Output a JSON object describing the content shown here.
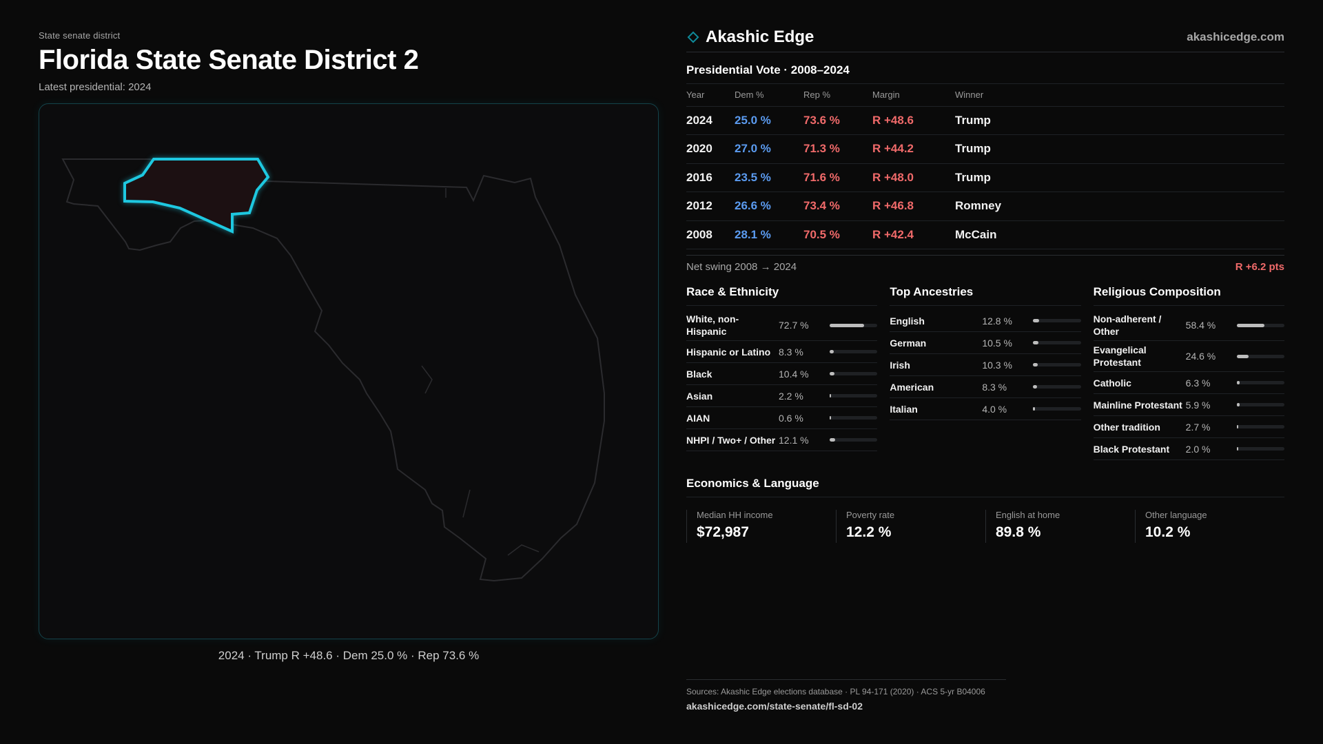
{
  "header": {
    "eyebrow": "State senate district",
    "title": "Florida State Senate District 2",
    "subtitle": "Latest presidential: 2024"
  },
  "map": {
    "caption": "2024 · Trump R +48.6 · Dem 25.0 % · Rep 73.6 %",
    "highlight_color": "#1ec8e0",
    "outline_color": "#2b2b2e"
  },
  "brand": {
    "name": "Akashic Edge",
    "url": "akashicedge.com",
    "icon": "diamond-icon"
  },
  "presidential": {
    "title": "Presidential Vote · 2008–2024",
    "columns": [
      "Year",
      "Dem %",
      "Rep %",
      "Margin",
      "Winner"
    ],
    "rows": [
      {
        "year": "2024",
        "dem": "25.0 %",
        "rep": "73.6 %",
        "margin": "R +48.6",
        "winner": "Trump"
      },
      {
        "year": "2020",
        "dem": "27.0 %",
        "rep": "71.3 %",
        "margin": "R +44.2",
        "winner": "Trump"
      },
      {
        "year": "2016",
        "dem": "23.5 %",
        "rep": "71.6 %",
        "margin": "R +48.0",
        "winner": "Trump"
      },
      {
        "year": "2012",
        "dem": "26.6 %",
        "rep": "73.4 %",
        "margin": "R +46.8",
        "winner": "Romney"
      },
      {
        "year": "2008",
        "dem": "28.1 %",
        "rep": "70.5 %",
        "margin": "R +42.4",
        "winner": "McCain"
      }
    ],
    "swing_label": "Net swing 2008 → 2024",
    "swing_value": "R +6.2 pts"
  },
  "colors": {
    "dem": "#5b9bf0",
    "rep": "#f06a6a"
  },
  "race": {
    "title": "Race & Ethnicity",
    "items": [
      {
        "label": "White, non-Hispanic",
        "value": "72.7 %",
        "pct": 72.7
      },
      {
        "label": "Hispanic or Latino",
        "value": "8.3 %",
        "pct": 8.3
      },
      {
        "label": "Black",
        "value": "10.4 %",
        "pct": 10.4
      },
      {
        "label": "Asian",
        "value": "2.2 %",
        "pct": 2.2
      },
      {
        "label": "AIAN",
        "value": "0.6 %",
        "pct": 0.6
      },
      {
        "label": "NHPI / Two+ / Other",
        "value": "12.1 %",
        "pct": 12.1
      }
    ]
  },
  "ancestry": {
    "title": "Top Ancestries",
    "items": [
      {
        "label": "English",
        "value": "12.8 %",
        "pct": 12.8
      },
      {
        "label": "German",
        "value": "10.5 %",
        "pct": 10.5
      },
      {
        "label": "Irish",
        "value": "10.3 %",
        "pct": 10.3
      },
      {
        "label": "American",
        "value": "8.3 %",
        "pct": 8.3
      },
      {
        "label": "Italian",
        "value": "4.0 %",
        "pct": 4.0
      }
    ]
  },
  "religion": {
    "title": "Religious Composition",
    "items": [
      {
        "label": "Non-adherent / Other",
        "value": "58.4 %",
        "pct": 58.4
      },
      {
        "label": "Evangelical Protestant",
        "value": "24.6 %",
        "pct": 24.6
      },
      {
        "label": "Catholic",
        "value": "6.3 %",
        "pct": 6.3
      },
      {
        "label": "Mainline Protestant",
        "value": "5.9 %",
        "pct": 5.9
      },
      {
        "label": "Other tradition",
        "value": "2.7 %",
        "pct": 2.7
      },
      {
        "label": "Black Protestant",
        "value": "2.0 %",
        "pct": 2.0
      }
    ]
  },
  "economics": {
    "title": "Economics & Language",
    "items": [
      {
        "label": "Median HH income",
        "value": "$72,987"
      },
      {
        "label": "Poverty rate",
        "value": "12.2 %"
      },
      {
        "label": "English at home",
        "value": "89.8 %"
      },
      {
        "label": "Other language",
        "value": "10.2 %"
      }
    ]
  },
  "sources": {
    "text": "Sources: Akashic Edge elections database · PL 94-171 (2020) · ACS 5-yr B04006",
    "link": "akashicedge.com/state-senate/fl-sd-02"
  }
}
